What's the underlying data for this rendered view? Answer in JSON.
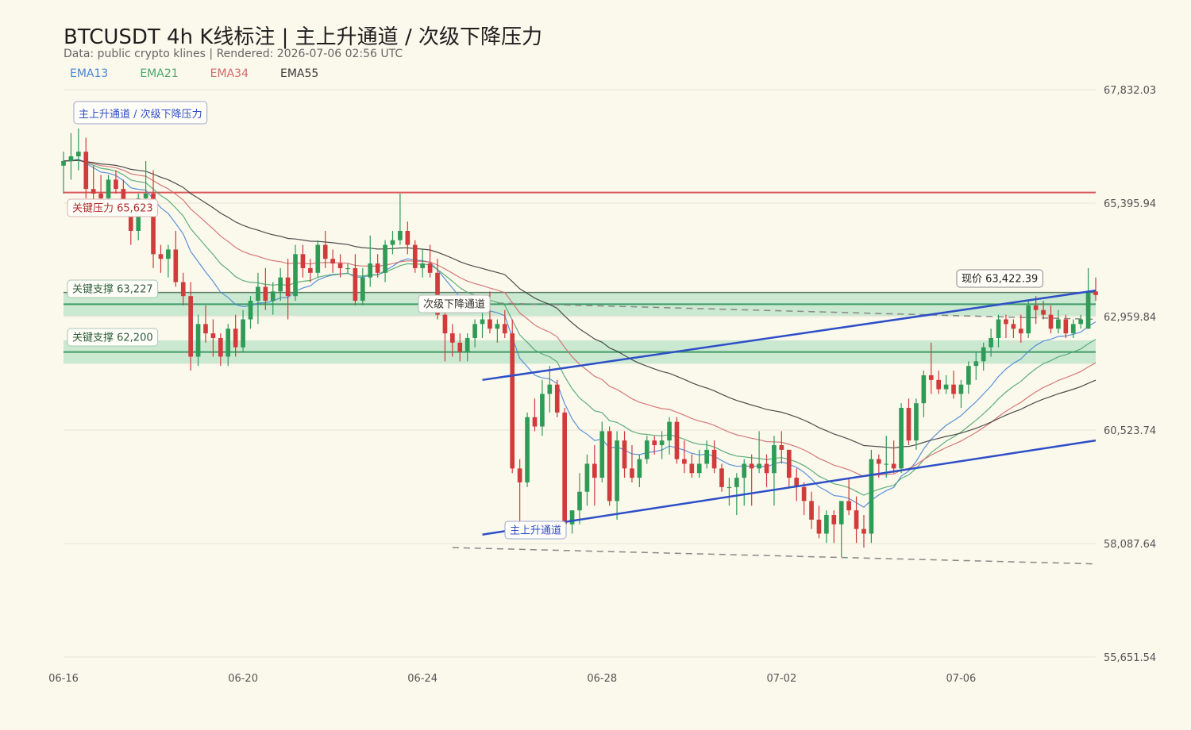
{
  "title": "BTCUSDT 4h K线标注 | 主上升通道 / 次级下降压力",
  "subtitle": "Data: public crypto klines | Rendered: 2026-07-06 02:56 UTC",
  "legend": [
    {
      "name": "EMA13",
      "color": "#4a86d6"
    },
    {
      "name": "EMA21",
      "color": "#4ea66e"
    },
    {
      "name": "EMA34",
      "color": "#d06b6b"
    },
    {
      "name": "EMA55",
      "color": "#3a3a3a"
    }
  ],
  "annotations": {
    "box": "主上升通道 / 次级下降压力",
    "resistance_label": "关键压力 65,623",
    "support1_label": "关键支撑 63,227",
    "support2_label": "关键支撑 62,200",
    "descending_label": "次级下降通道",
    "ascending_label": "主上升通道",
    "price_label": "现价 63,422.39"
  },
  "colors": {
    "up": "#2e9b57",
    "down": "#d13b3b",
    "channel": "#2d4fc7",
    "resistance": "#d9575b",
    "support": "#3d9c66",
    "support_band": "#bfe3c9",
    "dashed": "#888888",
    "grid": "#e8e4d6",
    "background": "#fbf8ec"
  },
  "chart_data": {
    "type": "candlestick",
    "title": "BTCUSDT 4h K线标注 | 主上升通道 / 次级下降压力",
    "x_ticks": [
      "06-16",
      "06-20",
      "06-24",
      "06-28",
      "07-02",
      "07-06"
    ],
    "y_ticks": [
      "67,832.03",
      "65,395.94",
      "62,959.84",
      "60,523.74",
      "58,087.64",
      "55,651.54"
    ],
    "ylim": [
      55651.54,
      67832.03
    ],
    "bars_per_day": 6,
    "levels": {
      "resistance": 65623,
      "support": [
        63227,
        62200
      ],
      "support_band_half_width": 250,
      "current_price": 63422.39
    },
    "candles": [
      [
        66200,
        66500,
        65600,
        66300
      ],
      [
        66300,
        66900,
        65900,
        66400
      ],
      [
        66400,
        67000,
        66100,
        66500
      ],
      [
        66500,
        66800,
        65500,
        65700
      ],
      [
        65700,
        66200,
        65400,
        65600
      ],
      [
        65600,
        66000,
        65300,
        65500
      ],
      [
        65500,
        66000,
        65200,
        65900
      ],
      [
        65900,
        66100,
        65600,
        65700
      ],
      [
        65700,
        65900,
        65100,
        65200
      ],
      [
        65200,
        65300,
        64500,
        64800
      ],
      [
        64800,
        65600,
        64600,
        65500
      ],
      [
        65500,
        66300,
        65100,
        65600
      ],
      [
        65600,
        66100,
        64000,
        64300
      ],
      [
        64300,
        64500,
        63900,
        64200
      ],
      [
        64200,
        64500,
        63800,
        64400
      ],
      [
        64400,
        64800,
        63600,
        63700
      ],
      [
        63700,
        63900,
        63200,
        63400
      ],
      [
        63400,
        63700,
        61800,
        62100
      ],
      [
        62100,
        63000,
        61900,
        62800
      ],
      [
        62800,
        63200,
        62400,
        62600
      ],
      [
        62600,
        62900,
        62100,
        62500
      ],
      [
        62500,
        62600,
        61900,
        62100
      ],
      [
        62100,
        62800,
        61900,
        62700
      ],
      [
        62700,
        63000,
        62100,
        62300
      ],
      [
        62300,
        63100,
        62200,
        62900
      ],
      [
        62900,
        63400,
        62700,
        63300
      ],
      [
        63300,
        63900,
        62800,
        63600
      ],
      [
        63600,
        64000,
        63100,
        63300
      ],
      [
        63300,
        63700,
        63000,
        63500
      ],
      [
        63500,
        64000,
        63300,
        63800
      ],
      [
        63800,
        64200,
        62900,
        63400
      ],
      [
        63400,
        64500,
        63300,
        64300
      ],
      [
        64300,
        64500,
        63800,
        64000
      ],
      [
        64000,
        64200,
        63700,
        63900
      ],
      [
        63900,
        64600,
        63800,
        64500
      ],
      [
        64500,
        64800,
        64000,
        64200
      ],
      [
        64200,
        64400,
        63900,
        64100
      ],
      [
        64100,
        64300,
        63800,
        64000
      ],
      [
        64000,
        64100,
        63900,
        64000
      ],
      [
        64000,
        64300,
        63200,
        63300
      ],
      [
        63300,
        64000,
        63200,
        63800
      ],
      [
        63800,
        64700,
        63600,
        64100
      ],
      [
        64100,
        64300,
        63800,
        63900
      ],
      [
        63900,
        64600,
        63700,
        64500
      ],
      [
        64500,
        64800,
        64300,
        64600
      ],
      [
        64600,
        65600,
        64500,
        64800
      ],
      [
        64800,
        65000,
        64300,
        64500
      ],
      [
        64500,
        64600,
        63900,
        64000
      ],
      [
        64000,
        64400,
        63800,
        64100
      ],
      [
        64100,
        64500,
        63800,
        63900
      ],
      [
        63900,
        64200,
        62900,
        63000
      ],
      [
        63000,
        63300,
        62000,
        62600
      ],
      [
        62600,
        62800,
        62100,
        62400
      ],
      [
        62400,
        62600,
        62000,
        62200
      ],
      [
        62200,
        62600,
        62000,
        62500
      ],
      [
        62500,
        62900,
        62300,
        62800
      ],
      [
        62800,
        63200,
        62500,
        62900
      ],
      [
        62900,
        63500,
        62600,
        62700
      ],
      [
        62700,
        62900,
        62400,
        62800
      ],
      [
        62800,
        63100,
        62500,
        62600
      ],
      [
        62600,
        62900,
        59600,
        59700
      ],
      [
        59700,
        59900,
        58500,
        59400
      ],
      [
        59400,
        60900,
        59300,
        60800
      ],
      [
        60800,
        61200,
        60500,
        60600
      ],
      [
        60600,
        61600,
        60400,
        61300
      ],
      [
        61300,
        61900,
        60900,
        61500
      ],
      [
        61500,
        61600,
        60800,
        60900
      ],
      [
        60900,
        61000,
        58400,
        58500
      ],
      [
        58500,
        58800,
        58300,
        58800
      ],
      [
        58800,
        59600,
        58500,
        59200
      ],
      [
        59200,
        60000,
        58900,
        59800
      ],
      [
        59800,
        60200,
        58900,
        59500
      ],
      [
        59500,
        60700,
        59400,
        60500
      ],
      [
        60500,
        60600,
        58900,
        59000
      ],
      [
        59000,
        60500,
        58600,
        60300
      ],
      [
        60300,
        60500,
        59500,
        59700
      ],
      [
        59700,
        60200,
        59400,
        59500
      ],
      [
        59500,
        60000,
        59300,
        59900
      ],
      [
        59900,
        60400,
        59800,
        60300
      ],
      [
        60300,
        60400,
        60000,
        60200
      ],
      [
        60200,
        60500,
        59900,
        60300
      ],
      [
        60300,
        60800,
        60000,
        60700
      ],
      [
        60700,
        60800,
        59800,
        59900
      ],
      [
        59900,
        60300,
        59600,
        59800
      ],
      [
        59800,
        60000,
        59500,
        59600
      ],
      [
        59600,
        60100,
        59500,
        59800
      ],
      [
        59800,
        60300,
        59700,
        60100
      ],
      [
        60100,
        60300,
        59600,
        59700
      ],
      [
        59700,
        59800,
        59200,
        59300
      ],
      [
        59300,
        59500,
        58900,
        59300
      ],
      [
        59300,
        59600,
        58700,
        59500
      ],
      [
        59500,
        59900,
        58900,
        59800
      ],
      [
        59800,
        60000,
        58900,
        59700
      ],
      [
        59700,
        60500,
        59600,
        59800
      ],
      [
        59800,
        60000,
        59300,
        59600
      ],
      [
        59600,
        60400,
        58900,
        60200
      ],
      [
        60200,
        60500,
        59800,
        60100
      ],
      [
        60100,
        60100,
        59300,
        59500
      ],
      [
        59500,
        59700,
        59000,
        59300
      ],
      [
        59300,
        59400,
        58700,
        59000
      ],
      [
        59000,
        59200,
        58400,
        58600
      ],
      [
        58600,
        58900,
        58200,
        58300
      ],
      [
        58300,
        58800,
        58100,
        58700
      ],
      [
        58700,
        58800,
        58100,
        58500
      ],
      [
        58500,
        59000,
        57800,
        59000
      ],
      [
        59000,
        59500,
        58700,
        58800
      ],
      [
        58800,
        59100,
        58100,
        58400
      ],
      [
        58400,
        58700,
        58000,
        58300
      ],
      [
        58300,
        60100,
        58100,
        59900
      ],
      [
        59900,
        60000,
        59500,
        59800
      ],
      [
        59800,
        60400,
        59500,
        59800
      ],
      [
        59800,
        60300,
        59600,
        59700
      ],
      [
        59700,
        61100,
        59600,
        61000
      ],
      [
        61000,
        61200,
        60200,
        60300
      ],
      [
        60300,
        61200,
        60100,
        61100
      ],
      [
        61100,
        61800,
        60800,
        61700
      ],
      [
        61700,
        62400,
        61300,
        61600
      ],
      [
        61600,
        61800,
        61300,
        61400
      ],
      [
        61400,
        61700,
        61300,
        61500
      ],
      [
        61500,
        61800,
        61200,
        61300
      ],
      [
        61300,
        61600,
        61000,
        61500
      ],
      [
        61500,
        62000,
        61300,
        61900
      ],
      [
        61900,
        62200,
        61600,
        62000
      ],
      [
        62000,
        62400,
        61800,
        62300
      ],
      [
        62300,
        62700,
        62100,
        62500
      ],
      [
        62500,
        63000,
        62300,
        62900
      ],
      [
        62900,
        63000,
        62500,
        62800
      ],
      [
        62800,
        62900,
        62500,
        62700
      ],
      [
        62700,
        63000,
        62400,
        62600
      ],
      [
        62600,
        63300,
        62500,
        63200
      ],
      [
        63200,
        63400,
        62800,
        63100
      ],
      [
        63100,
        63300,
        62900,
        63000
      ],
      [
        63000,
        63200,
        62600,
        62700
      ],
      [
        62700,
        63100,
        62600,
        62900
      ],
      [
        62900,
        63000,
        62500,
        62600
      ],
      [
        62600,
        62900,
        62500,
        62800
      ],
      [
        62800,
        63000,
        62700,
        62900
      ],
      [
        62700,
        64000,
        62700,
        63500
      ],
      [
        63500,
        63800,
        63300,
        63422.39
      ]
    ]
  }
}
